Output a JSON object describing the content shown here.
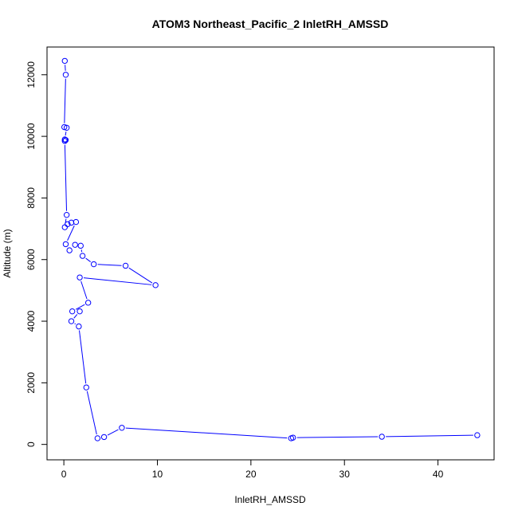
{
  "chart_data": {
    "type": "line",
    "title": "ATOM3 Northeast_Pacific_2 InletRH_AMSSD",
    "xlabel": "InletRH_AMSSD",
    "ylabel": "Altitude (m)",
    "xlim": [
      -1.8,
      46.0
    ],
    "ylim": [
      -500,
      12900
    ],
    "x_ticks": [
      0,
      10,
      20,
      30,
      40
    ],
    "y_ticks": [
      0,
      2000,
      4000,
      6000,
      8000,
      10000,
      12000
    ],
    "grid": false,
    "legend": "none",
    "markers": "open-circle",
    "color": "#0000ff",
    "x": [
      0.1,
      0.2,
      0.05,
      0.3,
      0.1,
      0.2,
      0.1,
      0.3,
      0.1,
      0.4,
      0.8,
      1.3,
      0.2,
      0.6,
      1.2,
      1.8,
      2.0,
      3.2,
      6.6,
      9.8,
      1.7,
      2.6,
      0.9,
      1.7,
      0.8,
      1.6,
      2.4,
      3.6,
      4.3,
      6.2,
      24.3,
      24.5,
      34.0,
      44.2
    ],
    "y": [
      12450,
      12000,
      10300,
      10280,
      9900,
      9880,
      9850,
      7450,
      7050,
      7150,
      7200,
      7220,
      6500,
      6300,
      6480,
      6450,
      6120,
      5850,
      5800,
      5170,
      5420,
      4600,
      4320,
      4320,
      4000,
      3830,
      1850,
      200,
      240,
      540,
      200,
      220,
      250,
      300
    ]
  }
}
